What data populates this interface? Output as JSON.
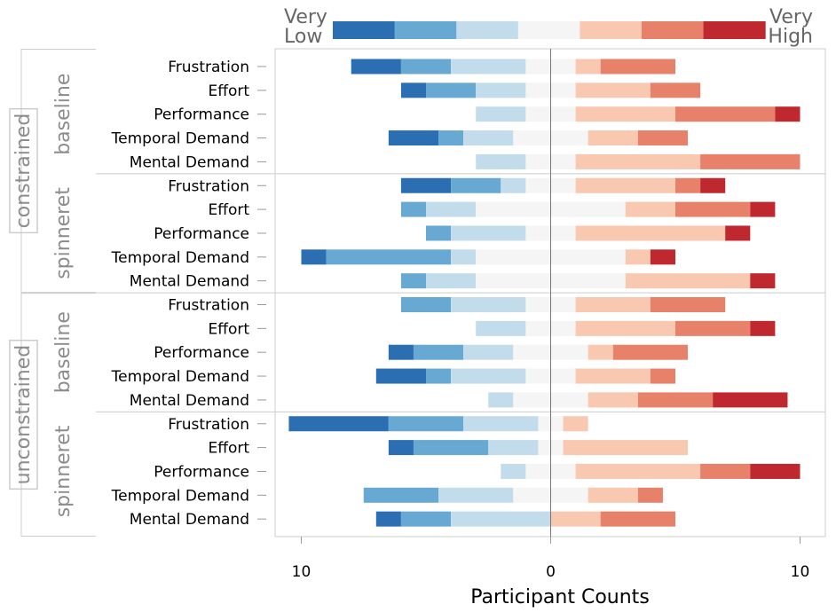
{
  "chart_data": {
    "type": "bar",
    "subtype": "diverging-stacked-likert",
    "orientation": "horizontal",
    "xlabel": "Participant Counts",
    "x_ticks": [
      "10",
      "0",
      "10"
    ],
    "xlim": [
      -10.5,
      11
    ],
    "legend": {
      "position": "top",
      "low_label_line1": "Very",
      "low_label_line2": "Low",
      "high_label_line1": "Very",
      "high_label_line2": "High",
      "levels": 7
    },
    "colors": [
      "#2b6fb2",
      "#68a9d4",
      "#c3dcec",
      "#f5f5f5",
      "#f9c8b0",
      "#e7816a",
      "#c0282f"
    ],
    "grid": false,
    "groups": [
      {
        "name": "constrained",
        "subgroups": [
          {
            "name": "baseline",
            "rows": [
              {
                "label": "Frustration",
                "counts": [
                  2,
                  2,
                  3,
                  2,
                  1,
                  3,
                  0
                ]
              },
              {
                "label": "Effort",
                "counts": [
                  1,
                  2,
                  2,
                  2,
                  3,
                  2,
                  0
                ]
              },
              {
                "label": "Performance",
                "counts": [
                  0,
                  0,
                  2,
                  2,
                  4,
                  4,
                  1
                ]
              },
              {
                "label": "Temporal Demand",
                "counts": [
                  2,
                  1,
                  2,
                  3,
                  2,
                  2,
                  0
                ]
              },
              {
                "label": "Mental Demand",
                "counts": [
                  0,
                  0,
                  2,
                  2,
                  5,
                  4,
                  0
                ]
              }
            ]
          },
          {
            "name": "spinneret",
            "rows": [
              {
                "label": "Frustration",
                "counts": [
                  2,
                  2,
                  1,
                  2,
                  4,
                  1,
                  1
                ]
              },
              {
                "label": "Effort",
                "counts": [
                  0,
                  1,
                  2,
                  6,
                  2,
                  3,
                  1
                ]
              },
              {
                "label": "Performance",
                "counts": [
                  0,
                  1,
                  3,
                  2,
                  6,
                  0,
                  1
                ]
              },
              {
                "label": "Temporal Demand",
                "counts": [
                  1,
                  5,
                  1,
                  6,
                  1,
                  0,
                  1
                ]
              },
              {
                "label": "Mental Demand",
                "counts": [
                  0,
                  1,
                  2,
                  6,
                  5,
                  0,
                  1
                ]
              }
            ]
          }
        ]
      },
      {
        "name": "unconstrained",
        "subgroups": [
          {
            "name": "baseline",
            "rows": [
              {
                "label": "Frustration",
                "counts": [
                  0,
                  2,
                  3,
                  2,
                  3,
                  3,
                  0
                ]
              },
              {
                "label": "Effort",
                "counts": [
                  0,
                  0,
                  2,
                  2,
                  4,
                  3,
                  1
                ]
              },
              {
                "label": "Performance",
                "counts": [
                  1,
                  2,
                  2,
                  3,
                  1,
                  3,
                  0
                ]
              },
              {
                "label": "Temporal Demand",
                "counts": [
                  2,
                  1,
                  3,
                  2,
                  3,
                  1,
                  0
                ]
              },
              {
                "label": "Mental Demand",
                "counts": [
                  0,
                  0,
                  1,
                  3,
                  2,
                  3,
                  3
                ]
              }
            ]
          },
          {
            "name": "spinneret",
            "rows": [
              {
                "label": "Frustration",
                "counts": [
                  4,
                  3,
                  3,
                  1,
                  1,
                  0,
                  0
                ]
              },
              {
                "label": "Effort",
                "counts": [
                  1,
                  3,
                  2,
                  1,
                  5,
                  0,
                  0
                ]
              },
              {
                "label": "Performance",
                "counts": [
                  0,
                  0,
                  1,
                  2,
                  5,
                  2,
                  2
                ]
              },
              {
                "label": "Temporal Demand",
                "counts": [
                  0,
                  3,
                  3,
                  3,
                  2,
                  1,
                  0
                ]
              },
              {
                "label": "Mental Demand",
                "counts": [
                  1,
                  2,
                  4,
                  0,
                  2,
                  3,
                  0
                ]
              }
            ]
          }
        ]
      }
    ]
  }
}
